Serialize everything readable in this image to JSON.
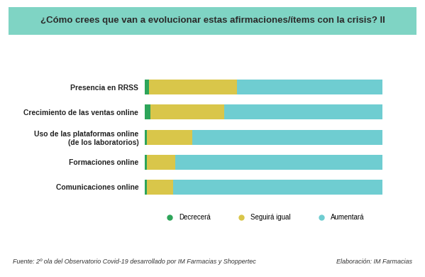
{
  "chart_data": {
    "type": "bar",
    "title": "¿Cómo crees que van a evolucionar estas afirmaciones/ítems con la crisis? II",
    "orientation": "horizontal",
    "stacked": true,
    "categories": [
      "Presencia en RRSS",
      "Crecimiento de las ventas online",
      "Uso de las plataformas online\n(de los laboratorios)",
      "Formaciones online",
      "Comunicaciones online"
    ],
    "series": [
      {
        "name": "Decrecerá",
        "color": "#2ea55a",
        "values": [
          2,
          2.5,
          1,
          1,
          1
        ]
      },
      {
        "name": "Seguirá igual",
        "color": "#d9c64a",
        "values": [
          37,
          31,
          19,
          12,
          11
        ]
      },
      {
        "name": "Aumentará",
        "color": "#6fcdd1",
        "values": [
          61,
          66.5,
          80,
          87,
          88
        ]
      }
    ],
    "xlim": [
      0,
      100
    ],
    "tick_labels": "y",
    "legend": "lower center",
    "source": "Fuente: 2º ola del Observatorio Covid-19 desarrollado por IM Farmacias y Shoppertec",
    "credit": "Elaboración: IM Farmacias"
  }
}
